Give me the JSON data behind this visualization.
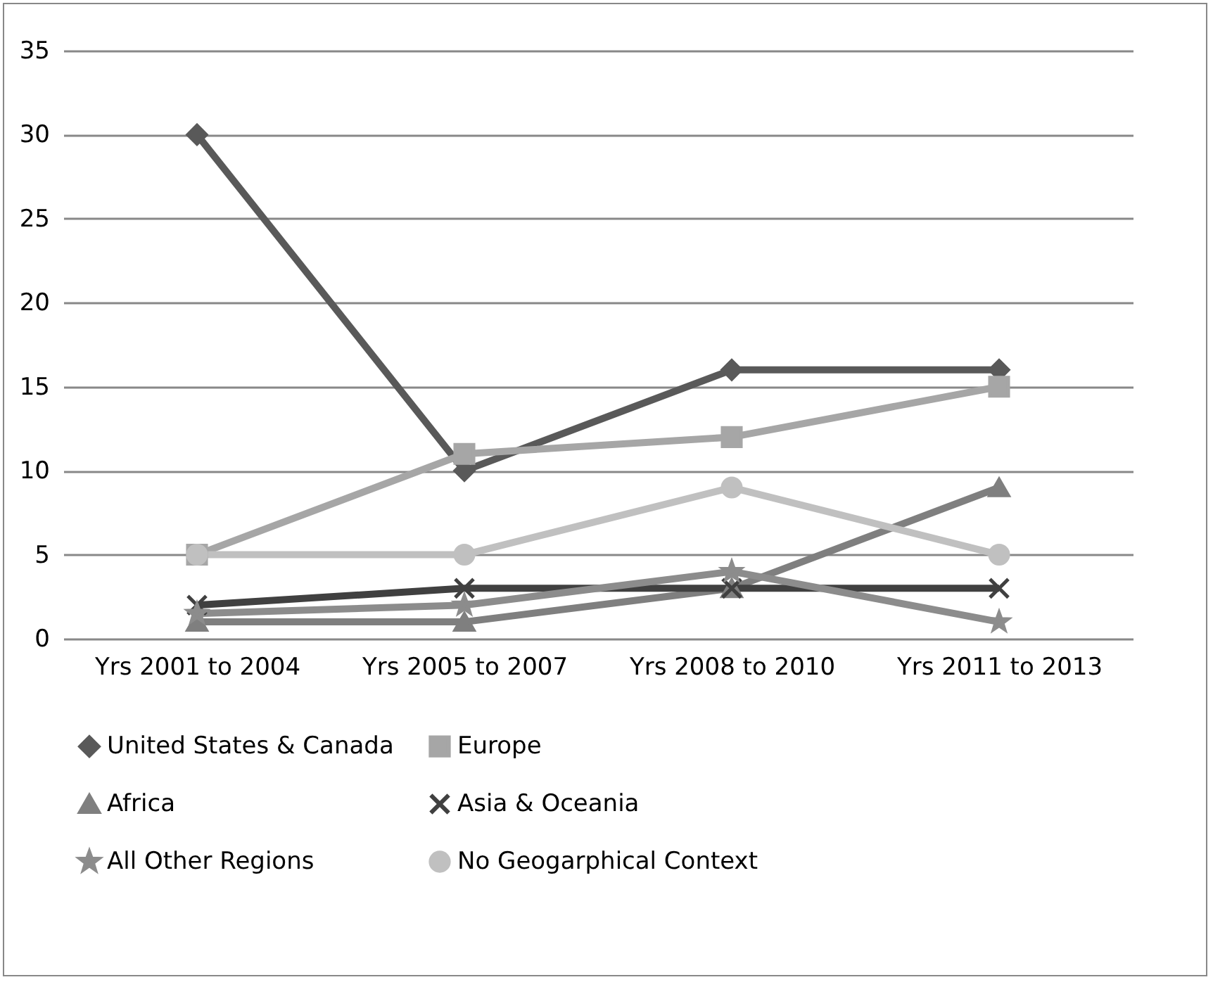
{
  "chart_data": {
    "type": "line",
    "categories": [
      "Yrs 2001 to 2004",
      "Yrs 2005 to 2007",
      "Yrs 2008 to 2010",
      "Yrs 2011 to 2013"
    ],
    "ylim": [
      0,
      35
    ],
    "yticks": [
      0,
      5,
      10,
      15,
      20,
      25,
      30,
      35
    ],
    "grid": "y",
    "legend": "bottom",
    "series": [
      {
        "name": "United States & Canada",
        "color": "#595959",
        "marker": "diamond",
        "values": [
          30,
          10,
          16,
          16
        ]
      },
      {
        "name": "Europe",
        "color": "#a6a6a6",
        "marker": "square",
        "values": [
          5,
          11,
          12,
          15
        ]
      },
      {
        "name": "Africa",
        "color": "#7f7f7f",
        "marker": "triangle",
        "values": [
          1,
          1,
          3,
          9
        ]
      },
      {
        "name": "Asia & Oceania",
        "color": "#404040",
        "marker": "cross",
        "values": [
          2,
          3,
          3,
          3
        ]
      },
      {
        "name": "All Other Regions",
        "color": "#8c8c8c",
        "marker": "star",
        "values": [
          1.5,
          2,
          4,
          1
        ]
      },
      {
        "name": "No Geogarphical Context",
        "color": "#c0c0c0",
        "marker": "circle",
        "values": [
          5,
          5,
          9,
          5
        ]
      }
    ]
  }
}
